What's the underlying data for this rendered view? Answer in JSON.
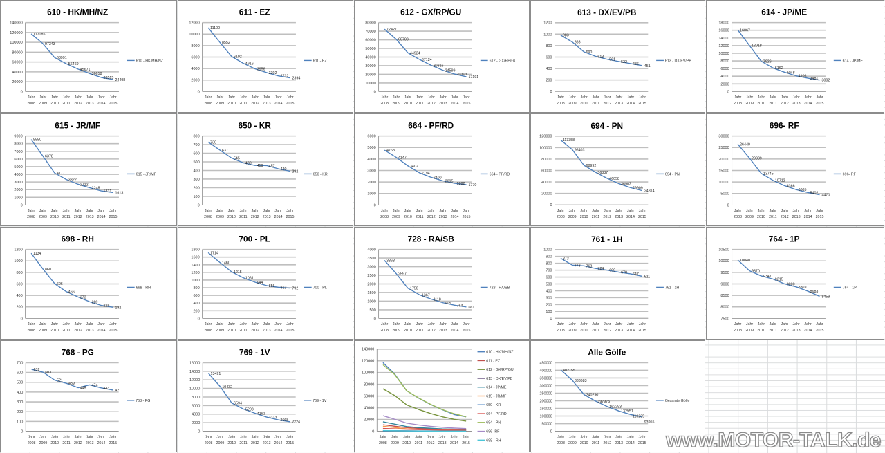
{
  "accent_color": "#4f81bd",
  "watermark": "www.MOTOR-TALK.de",
  "chart_data": [
    {
      "type": "line",
      "title": "610 - HK/MH/NZ",
      "x_prefix": "Jahr",
      "categories": [
        "2008",
        "2009",
        "2010",
        "2011",
        "2012",
        "2013",
        "2014",
        "2015"
      ],
      "ylim": [
        0,
        140000
      ],
      "yticks": [
        "0",
        "20000",
        "40000",
        "60000",
        "80000",
        "100000",
        "120000",
        "140000"
      ],
      "grid": true,
      "legend": "right",
      "series": [
        {
          "name": "610 - HK/MH/NZ",
          "color": "#4f81bd",
          "values": [
            117085,
            97343,
            68991,
            56469,
            45671,
            36658,
            28515,
            24498
          ]
        }
      ]
    },
    {
      "type": "line",
      "title": "611 - EZ",
      "x_prefix": "Jahr",
      "categories": [
        "2008",
        "2009",
        "2010",
        "2011",
        "2012",
        "2013",
        "2014",
        "2015"
      ],
      "ylim": [
        0,
        12000
      ],
      "yticks": [
        "0",
        "2000",
        "4000",
        "6000",
        "8000",
        "10000",
        "12000"
      ],
      "grid": true,
      "legend": "right",
      "series": [
        {
          "name": "611 - EZ",
          "color": "#4f81bd",
          "values": [
            11100,
            8552,
            6102,
            4916,
            3956,
            3302,
            2732,
            2394
          ]
        }
      ]
    },
    {
      "type": "line",
      "title": "612 - GX/RP/GU",
      "x_prefix": "Jahr",
      "categories": [
        "2008",
        "2009",
        "2010",
        "2011",
        "2012",
        "2013",
        "2014",
        "2015"
      ],
      "ylim": [
        0,
        80000
      ],
      "yticks": [
        "0",
        "10000",
        "20000",
        "30000",
        "40000",
        "50000",
        "60000",
        "70000",
        "80000"
      ],
      "grid": true,
      "legend": "right",
      "series": [
        {
          "name": "612 - GX/RP/GU",
          "color": "#4f81bd",
          "values": [
            72427,
            60708,
            44924,
            37124,
            30316,
            24599,
            20313,
            17191
          ]
        }
      ]
    },
    {
      "type": "line",
      "title": "613 - DX/EV/PB",
      "x_prefix": "Jahr",
      "categories": [
        "2008",
        "2009",
        "2010",
        "2011",
        "2012",
        "2013",
        "2014",
        "2015"
      ],
      "ylim": [
        0,
        1200
      ],
      "yticks": [
        "0",
        "200",
        "400",
        "600",
        "800",
        "1000",
        "1200"
      ],
      "grid": true,
      "legend": "right",
      "series": [
        {
          "name": "613 - DX/EV/PB",
          "color": "#4f81bd",
          "values": [
            983,
            863,
            690,
            613,
            561,
            522,
            486,
            451
          ]
        }
      ]
    },
    {
      "type": "line",
      "title": "614 - JP/ME",
      "x_prefix": "Jahr",
      "categories": [
        "2008",
        "2009",
        "2010",
        "2011",
        "2012",
        "2013",
        "2014",
        "2015"
      ],
      "ylim": [
        0,
        18000
      ],
      "yticks": [
        "0",
        "2000",
        "4000",
        "6000",
        "8000",
        "10000",
        "12000",
        "14000",
        "16000",
        "18000"
      ],
      "grid": true,
      "legend": "right",
      "series": [
        {
          "name": "614 - JP/ME",
          "color": "#4f81bd",
          "values": [
            16067,
            12018,
            7926,
            6162,
            5048,
            4106,
            3481,
            3002
          ]
        }
      ]
    },
    {
      "type": "line",
      "title": "615 - JR/MF",
      "x_prefix": "Jahr",
      "categories": [
        "2008",
        "2009",
        "2010",
        "2011",
        "2012",
        "2013",
        "2014",
        "2015"
      ],
      "ylim": [
        0,
        9000
      ],
      "yticks": [
        "0",
        "1000",
        "2000",
        "3000",
        "4000",
        "5000",
        "6000",
        "7000",
        "8000",
        "9000"
      ],
      "grid": true,
      "legend": "right",
      "series": [
        {
          "name": "615 - JR/MF",
          "color": "#4f81bd",
          "values": [
            8550,
            6378,
            4177,
            3322,
            2712,
            2248,
            1831,
            1613
          ]
        }
      ]
    },
    {
      "type": "line",
      "title": "650 - KR",
      "x_prefix": "Jahr",
      "categories": [
        "2008",
        "2009",
        "2010",
        "2011",
        "2012",
        "2013",
        "2014",
        "2015"
      ],
      "ylim": [
        0,
        800
      ],
      "yticks": [
        "0",
        "100",
        "200",
        "300",
        "400",
        "500",
        "600",
        "700",
        "800"
      ],
      "grid": true,
      "legend": "right",
      "series": [
        {
          "name": "650 - KR",
          "color": "#4f81bd",
          "values": [
            730,
            637,
            545,
            489,
            459,
            457,
            420,
            392
          ]
        }
      ]
    },
    {
      "type": "line",
      "title": "664 - PF/RD",
      "x_prefix": "Jahr",
      "categories": [
        "2008",
        "2009",
        "2010",
        "2011",
        "2012",
        "2013",
        "2014",
        "2015"
      ],
      "ylim": [
        0,
        6000
      ],
      "yticks": [
        "0",
        "1000",
        "2000",
        "3000",
        "4000",
        "5000",
        "6000"
      ],
      "grid": true,
      "legend": "right",
      "series": [
        {
          "name": "664 - PF/RD",
          "color": "#4f81bd",
          "values": [
            4768,
            4147,
            3402,
            2794,
            2400,
            2095,
            1882,
            1770
          ]
        }
      ]
    },
    {
      "type": "line",
      "title": "694 - PN",
      "x_prefix": "Jahr",
      "categories": [
        "2008",
        "2009",
        "2010",
        "2011",
        "2012",
        "2013",
        "2014",
        "2015"
      ],
      "ylim": [
        0,
        120000
      ],
      "yticks": [
        "0",
        "20000",
        "40000",
        "60000",
        "80000",
        "100000",
        "120000"
      ],
      "grid": true,
      "legend": "right",
      "series": [
        {
          "name": "694 - PN",
          "color": "#4f81bd",
          "values": [
            113358,
            96403,
            68992,
            56837,
            46058,
            36902,
            29909,
            24814
          ]
        }
      ]
    },
    {
      "type": "line",
      "title": "696- RF",
      "x_prefix": "Jahr",
      "categories": [
        "2008",
        "2009",
        "2010",
        "2011",
        "2012",
        "2013",
        "2014",
        "2015"
      ],
      "ylim": [
        0,
        30000
      ],
      "yticks": [
        "0",
        "5000",
        "10000",
        "15000",
        "20000",
        "25000",
        "30000"
      ],
      "grid": true,
      "legend": "right",
      "series": [
        {
          "name": "696- RF",
          "color": "#4f81bd",
          "values": [
            26440,
            20339,
            13745,
            10712,
            8366,
            6665,
            5402,
            4470
          ]
        }
      ]
    },
    {
      "type": "line",
      "title": "698 - RH",
      "x_prefix": "Jahr",
      "categories": [
        "2008",
        "2009",
        "2010",
        "2011",
        "2012",
        "2013",
        "2014",
        "2015"
      ],
      "ylim": [
        0,
        1200
      ],
      "yticks": [
        "0",
        "200",
        "400",
        "600",
        "800",
        "1000",
        "1200"
      ],
      "grid": true,
      "legend": "right",
      "series": [
        {
          "name": "698 - RH",
          "color": "#4f81bd",
          "values": [
            1134,
            860,
            606,
            466,
            373,
            289,
            226,
            192
          ]
        }
      ]
    },
    {
      "type": "line",
      "title": "700 - PL",
      "x_prefix": "Jahr",
      "categories": [
        "2008",
        "2009",
        "2010",
        "2011",
        "2012",
        "2013",
        "2014",
        "2015"
      ],
      "ylim": [
        0,
        1800
      ],
      "yticks": [
        "0",
        "200",
        "400",
        "600",
        "800",
        "1000",
        "1200",
        "1400",
        "1600",
        "1800"
      ],
      "grid": true,
      "legend": "right",
      "series": [
        {
          "name": "700 - PL",
          "color": "#4f81bd",
          "values": [
            1714,
            1460,
            1215,
            1061,
            944,
            856,
            813,
            792
          ]
        }
      ]
    },
    {
      "type": "line",
      "title": "728 - RA/SB",
      "x_prefix": "Jahr",
      "categories": [
        "2008",
        "2009",
        "2010",
        "2011",
        "2012",
        "2013",
        "2014",
        "2015"
      ],
      "ylim": [
        0,
        4000
      ],
      "yticks": [
        "0",
        "500",
        "1000",
        "1500",
        "2000",
        "2500",
        "3000",
        "3500",
        "4000"
      ],
      "grid": true,
      "legend": "right",
      "series": [
        {
          "name": "728 - RA/SB",
          "color": "#4f81bd",
          "values": [
            3363,
            2597,
            1750,
            1367,
            1118,
            905,
            764,
            661
          ]
        }
      ]
    },
    {
      "type": "line",
      "title": "761 - 1H",
      "x_prefix": "Jahr",
      "categories": [
        "2008",
        "2009",
        "2010",
        "2011",
        "2012",
        "2013",
        "2014",
        "2015"
      ],
      "ylim": [
        0,
        1000
      ],
      "yticks": [
        "0",
        "100",
        "200",
        "300",
        "400",
        "500",
        "600",
        "700",
        "800",
        "900",
        "1000"
      ],
      "grid": true,
      "legend": "right",
      "series": [
        {
          "name": "761 - 1H",
          "color": "#4f81bd",
          "values": [
            873,
            773,
            763,
            724,
            699,
            670,
            647,
            611
          ]
        }
      ]
    },
    {
      "type": "line",
      "title": "764 - 1P",
      "x_prefix": "Jahr",
      "categories": [
        "2008",
        "2009",
        "2010",
        "2011",
        "2012",
        "2013",
        "2014",
        "2015"
      ],
      "ylim": [
        7500,
        10500
      ],
      "yticks": [
        "7500",
        "8000",
        "8500",
        "9000",
        "9500",
        "10000",
        "10500"
      ],
      "grid": true,
      "legend": "right",
      "series": [
        {
          "name": "764 - 1P",
          "color": "#4f81bd",
          "values": [
            10040,
            9570,
            9347,
            9215,
            9000,
            8869,
            8683,
            8459
          ]
        }
      ]
    },
    {
      "type": "line",
      "title": "768 - PG",
      "x_prefix": "Jahr",
      "categories": [
        "2008",
        "2009",
        "2010",
        "2011",
        "2012",
        "2013",
        "2014",
        "2015"
      ],
      "ylim": [
        0,
        700
      ],
      "yticks": [
        "0",
        "100",
        "200",
        "300",
        "400",
        "500",
        "600",
        "700"
      ],
      "grid": true,
      "legend": "right",
      "series": [
        {
          "name": "768 - PG",
          "color": "#4f81bd",
          "values": [
            632,
            603,
            521,
            489,
            445,
            474,
            443,
            421
          ]
        }
      ]
    },
    {
      "type": "line",
      "title": "769 - 1V",
      "x_prefix": "Jahr",
      "categories": [
        "2008",
        "2009",
        "2010",
        "2011",
        "2012",
        "2013",
        "2014",
        "2015"
      ],
      "ylim": [
        0,
        16000
      ],
      "yticks": [
        "0",
        "2000",
        "4000",
        "6000",
        "8000",
        "10000",
        "12000",
        "14000",
        "16000"
      ],
      "grid": true,
      "legend": "right",
      "series": [
        {
          "name": "769 - 1V",
          "color": "#4f81bd",
          "values": [
            13491,
            10432,
            6594,
            5203,
            4191,
            3313,
            2668,
            2224
          ]
        }
      ]
    },
    {
      "type": "line",
      "title": "",
      "x_prefix": "Jahr",
      "categories": [
        "2008",
        "2009",
        "2010",
        "2011",
        "2012",
        "2013",
        "2014",
        "2015"
      ],
      "ylim": [
        0,
        140000
      ],
      "yticks": [
        "0",
        "20000",
        "40000",
        "60000",
        "80000",
        "100000",
        "120000",
        "140000"
      ],
      "grid": true,
      "legend": "right",
      "data_labels": false,
      "series": [
        {
          "name": "610 - HK/MH/NZ",
          "color": "#4f81bd",
          "values": [
            117085,
            97343,
            68991,
            56469,
            45671,
            36658,
            28515,
            24498
          ]
        },
        {
          "name": "611 - EZ",
          "color": "#c0504d",
          "values": [
            11100,
            8552,
            6102,
            4916,
            3956,
            3302,
            2732,
            2394
          ]
        },
        {
          "name": "612 - GX/RP/GU",
          "color": "#77933c",
          "values": [
            72427,
            60708,
            44924,
            37124,
            30316,
            24599,
            20313,
            17191
          ]
        },
        {
          "name": "613 - DX/EV/PB",
          "color": "#604a7b",
          "values": [
            983,
            863,
            690,
            613,
            561,
            522,
            486,
            451
          ]
        },
        {
          "name": "614 - JP/ME",
          "color": "#31859c",
          "values": [
            16067,
            12018,
            7926,
            6162,
            5048,
            4106,
            3481,
            3002
          ]
        },
        {
          "name": "615 - JR/MF",
          "color": "#f79646",
          "values": [
            8550,
            6378,
            4177,
            3322,
            2712,
            2248,
            1831,
            1613
          ]
        },
        {
          "name": "650 - KR",
          "color": "#2c6fbb",
          "values": [
            730,
            637,
            545,
            489,
            459,
            457,
            420,
            392
          ]
        },
        {
          "name": "664 - PF/RD",
          "color": "#d9534f",
          "values": [
            4768,
            4147,
            3402,
            2794,
            2400,
            2095,
            1882,
            1770
          ]
        },
        {
          "name": "694 - PN",
          "color": "#9bbb59",
          "values": [
            113358,
            96403,
            68992,
            56837,
            46058,
            36902,
            29909,
            24814
          ]
        },
        {
          "name": "696- RF",
          "color": "#a58bc7",
          "values": [
            26440,
            20339,
            13745,
            10712,
            8366,
            6665,
            5402,
            4470
          ]
        },
        {
          "name": "698 - RH",
          "color": "#4bc6d8",
          "values": [
            1134,
            860,
            606,
            466,
            373,
            289,
            226,
            192
          ]
        }
      ]
    },
    {
      "type": "line",
      "title": "Alle Gölfe",
      "x_prefix": "Jahr",
      "categories": [
        "2008",
        "2009",
        "2010",
        "2011",
        "2012",
        "2013",
        "2014",
        "2015"
      ],
      "ylim": [
        0,
        450000
      ],
      "yticks": [
        "0",
        "50000",
        "100000",
        "150000",
        "200000",
        "250000",
        "300000",
        "350000",
        "400000",
        "450000"
      ],
      "grid": true,
      "legend": "right",
      "series": [
        {
          "name": "Gesamte Gölfe",
          "color": "#4f81bd",
          "values": [
            402755,
            333683,
            240290,
            197975,
            162293,
            132951,
            110235,
            93955
          ]
        }
      ]
    }
  ]
}
